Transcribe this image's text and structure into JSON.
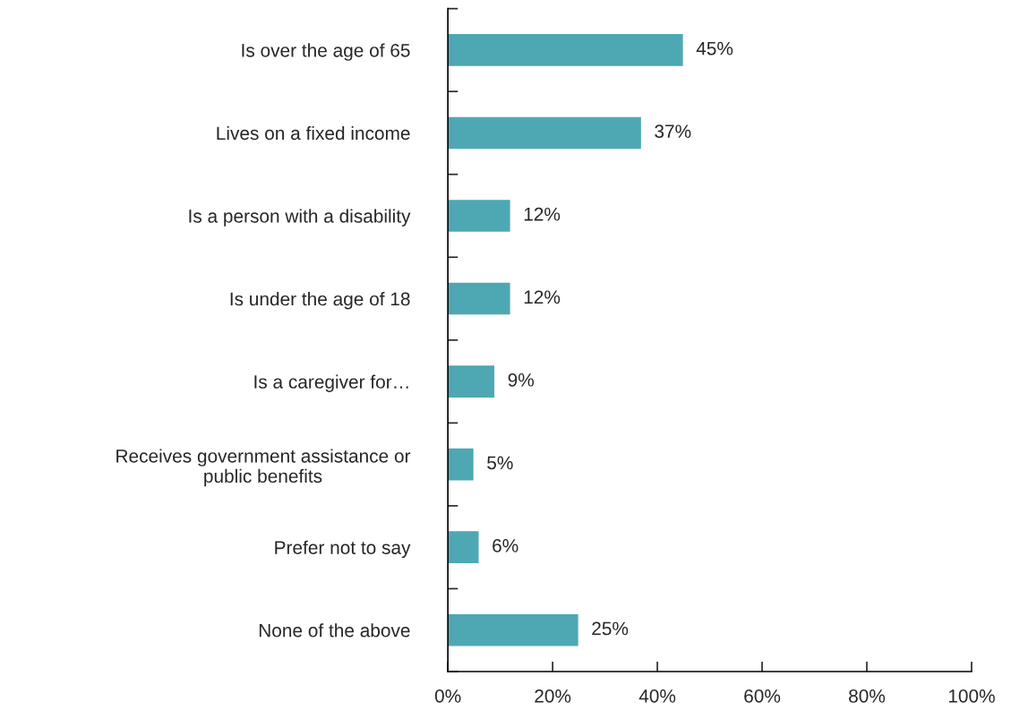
{
  "chart_data": {
    "type": "bar",
    "orientation": "horizontal",
    "categories": [
      "Is over the age of 65",
      "Lives on a fixed income",
      "Is a person with a disability",
      "Is under the age of 18",
      "Is a caregiver for…",
      "Receives government assistance or\npublic benefits",
      "Prefer not to say",
      "None of the above"
    ],
    "values": [
      45,
      37,
      12,
      12,
      9,
      5,
      6,
      25
    ],
    "value_labels": [
      "45%",
      "37%",
      "12%",
      "12%",
      "9%",
      "5%",
      "6%",
      "25%"
    ],
    "color": "#4ea8b3",
    "xlim": [
      0,
      100
    ],
    "xticks": [
      {
        "value": 0,
        "label": "0%"
      },
      {
        "value": 20,
        "label": "20%"
      },
      {
        "value": 40,
        "label": "40%"
      },
      {
        "value": 60,
        "label": "60%"
      },
      {
        "value": 80,
        "label": "80%"
      },
      {
        "value": 100,
        "label": "100%"
      }
    ],
    "grid": false,
    "legend": false
  }
}
